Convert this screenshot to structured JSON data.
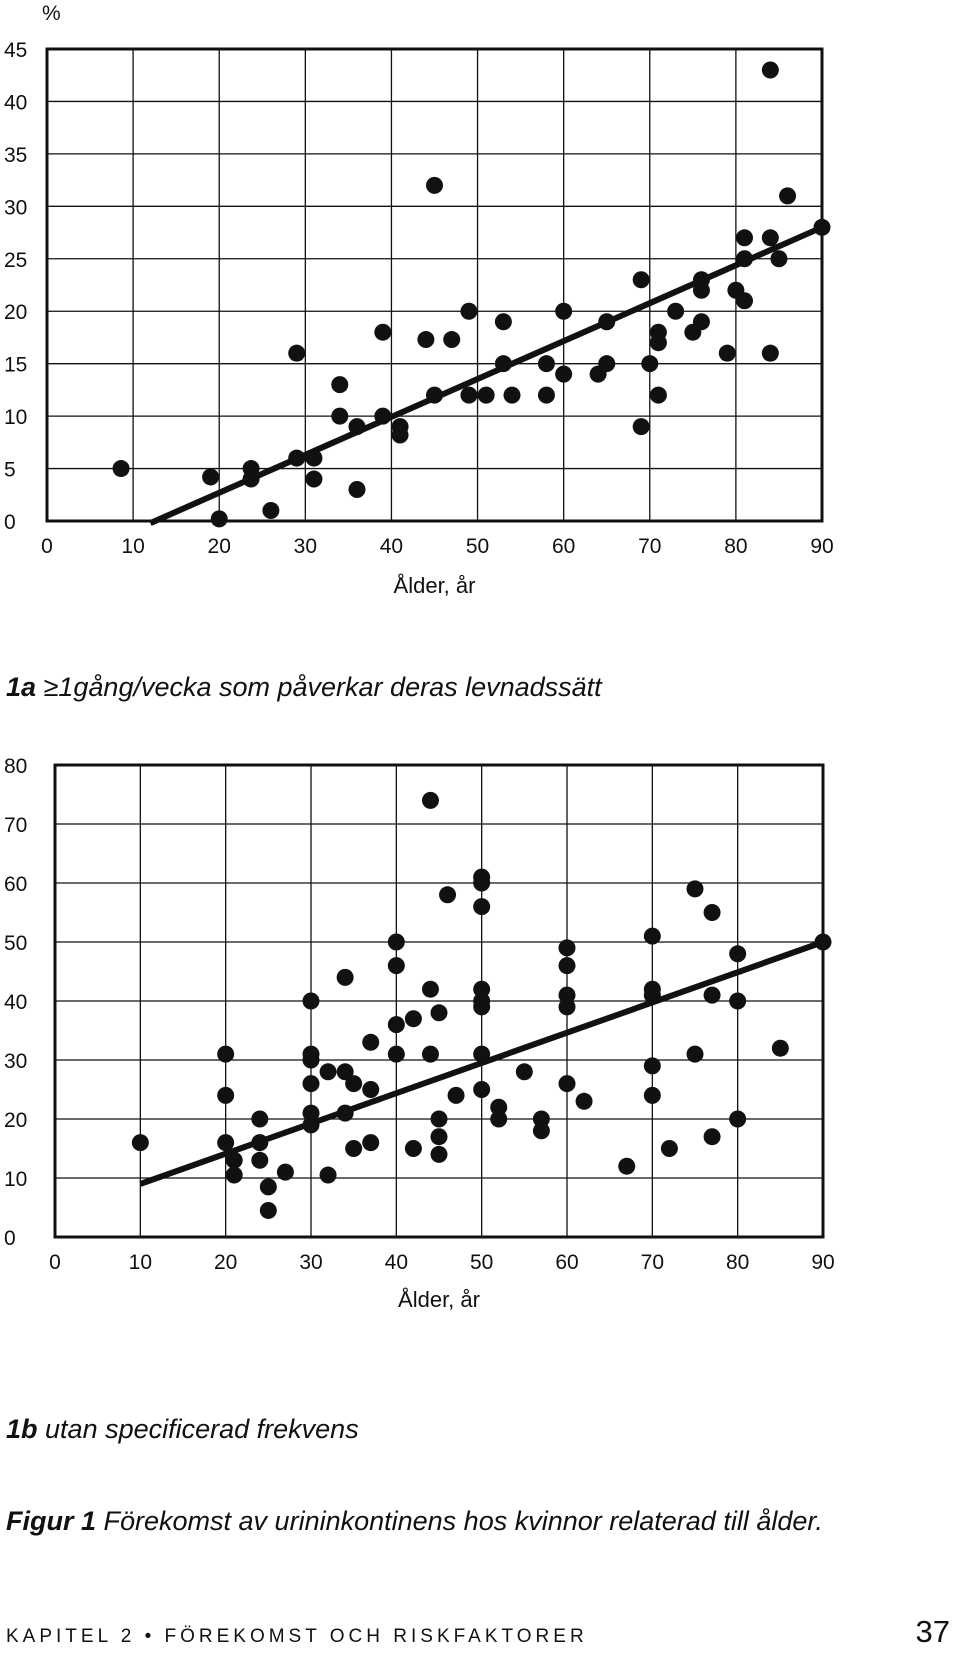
{
  "chart_data": [
    {
      "type": "scatter",
      "id": "1a",
      "panel_label": "1a",
      "title": "≥1gång/vecka som påverkar deras levnadssätt",
      "ylabel": "%",
      "xlabel": "Ålder, år",
      "xlim": [
        0,
        90
      ],
      "ylim": [
        0,
        45
      ],
      "x_ticks": [
        0,
        10,
        20,
        30,
        40,
        50,
        60,
        70,
        80,
        90
      ],
      "y_ticks": [
        0,
        5,
        10,
        15,
        20,
        25,
        30,
        35,
        40,
        45
      ],
      "grid": true,
      "trend_line": [
        [
          12,
          -0.2
        ],
        [
          90,
          28
        ]
      ],
      "points": [
        [
          8.6,
          5
        ],
        [
          19,
          4.2
        ],
        [
          20,
          0.2
        ],
        [
          23.7,
          5
        ],
        [
          23.7,
          4
        ],
        [
          26,
          1
        ],
        [
          29,
          16
        ],
        [
          29,
          6
        ],
        [
          31,
          6
        ],
        [
          31,
          4
        ],
        [
          34,
          13
        ],
        [
          34,
          10
        ],
        [
          36,
          9
        ],
        [
          36,
          3
        ],
        [
          39,
          18
        ],
        [
          39,
          10
        ],
        [
          41,
          9
        ],
        [
          41,
          8.2
        ],
        [
          44,
          17.3
        ],
        [
          45,
          32
        ],
        [
          45,
          12
        ],
        [
          47,
          17.3
        ],
        [
          49,
          20
        ],
        [
          49,
          12
        ],
        [
          51,
          12
        ],
        [
          53,
          19
        ],
        [
          53,
          15
        ],
        [
          54,
          12
        ],
        [
          58,
          15
        ],
        [
          58,
          12
        ],
        [
          60,
          20
        ],
        [
          60,
          14
        ],
        [
          64,
          14
        ],
        [
          65,
          19
        ],
        [
          65,
          15
        ],
        [
          69,
          23
        ],
        [
          69,
          9
        ],
        [
          70,
          15
        ],
        [
          71,
          18
        ],
        [
          71,
          17
        ],
        [
          71,
          12
        ],
        [
          73,
          20
        ],
        [
          75,
          18
        ],
        [
          76,
          23
        ],
        [
          76,
          22
        ],
        [
          76,
          19
        ],
        [
          79,
          16
        ],
        [
          80,
          22
        ],
        [
          81,
          27
        ],
        [
          81,
          25
        ],
        [
          81,
          21
        ],
        [
          84,
          43
        ],
        [
          84,
          27
        ],
        [
          84,
          16
        ],
        [
          85,
          25
        ],
        [
          86,
          31
        ],
        [
          90,
          28
        ]
      ]
    },
    {
      "type": "scatter",
      "id": "1b",
      "panel_label": "1b",
      "title": "utan specificerad frekvens",
      "ylabel": "%",
      "xlabel": "Ålder, år",
      "xlim": [
        0,
        90
      ],
      "ylim": [
        0,
        80
      ],
      "x_ticks": [
        0,
        10,
        20,
        30,
        40,
        50,
        60,
        70,
        80,
        90
      ],
      "y_ticks": [
        0,
        10,
        20,
        30,
        40,
        50,
        60,
        70,
        80
      ],
      "grid": true,
      "trend_line": [
        [
          10,
          9
        ],
        [
          90,
          50
        ]
      ],
      "points": [
        [
          10,
          16
        ],
        [
          20,
          31
        ],
        [
          20,
          24
        ],
        [
          20,
          16
        ],
        [
          21,
          13
        ],
        [
          21,
          10.5
        ],
        [
          24,
          20
        ],
        [
          24,
          16
        ],
        [
          24,
          13
        ],
        [
          25,
          8.5
        ],
        [
          25,
          4.5
        ],
        [
          27,
          11
        ],
        [
          30,
          40
        ],
        [
          30,
          31
        ],
        [
          30,
          30
        ],
        [
          30,
          26
        ],
        [
          30,
          21
        ],
        [
          30,
          19
        ],
        [
          32,
          28
        ],
        [
          32,
          10.5
        ],
        [
          34,
          44
        ],
        [
          34,
          28
        ],
        [
          34,
          21
        ],
        [
          35,
          26
        ],
        [
          35,
          15
        ],
        [
          37,
          33
        ],
        [
          37,
          25
        ],
        [
          37,
          16
        ],
        [
          40,
          50
        ],
        [
          40,
          46
        ],
        [
          40,
          36
        ],
        [
          40,
          31
        ],
        [
          42,
          37
        ],
        [
          42,
          15
        ],
        [
          44,
          74
        ],
        [
          44,
          42
        ],
        [
          44,
          31
        ],
        [
          45,
          38
        ],
        [
          45,
          20
        ],
        [
          45,
          17
        ],
        [
          45,
          14
        ],
        [
          46,
          58
        ],
        [
          47,
          24
        ],
        [
          50,
          61
        ],
        [
          50,
          60
        ],
        [
          50,
          56
        ],
        [
          50,
          42
        ],
        [
          50,
          40
        ],
        [
          50,
          39
        ],
        [
          50,
          31
        ],
        [
          50,
          25
        ],
        [
          52,
          22
        ],
        [
          52,
          20
        ],
        [
          55,
          28
        ],
        [
          57,
          20
        ],
        [
          57,
          18
        ],
        [
          60,
          49
        ],
        [
          60,
          46
        ],
        [
          60,
          41
        ],
        [
          60,
          39
        ],
        [
          60,
          26
        ],
        [
          62,
          23
        ],
        [
          67,
          12
        ],
        [
          70,
          51
        ],
        [
          70,
          42
        ],
        [
          70,
          41
        ],
        [
          70,
          29
        ],
        [
          70,
          24
        ],
        [
          72,
          15
        ],
        [
          75,
          59
        ],
        [
          75,
          31
        ],
        [
          77,
          55
        ],
        [
          77,
          41
        ],
        [
          77,
          17
        ],
        [
          80,
          48
        ],
        [
          80,
          40
        ],
        [
          80,
          20
        ],
        [
          85,
          32
        ],
        [
          90,
          50
        ]
      ]
    }
  ],
  "figure_caption": {
    "label": "Figur 1",
    "text": " Förekomst av urininkontinens hos kvinnor relaterad till ålder."
  },
  "footer": {
    "chapter": "KAPITEL 2 • FÖREKOMST OCH RISKFAKTORER",
    "page_number": "37"
  }
}
